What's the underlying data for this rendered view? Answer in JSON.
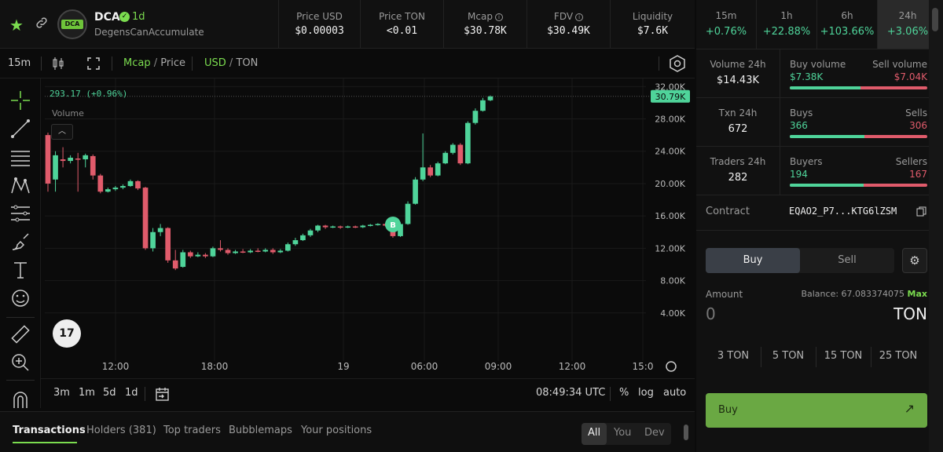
{
  "header": {
    "token_symbol": "DCA",
    "verified_icon": "check-badge-icon",
    "age": "1d",
    "token_name": "DegensCanAccumulate",
    "stats": [
      {
        "label": "Price USD",
        "value": "$0.00003"
      },
      {
        "label": "Price TON",
        "value": "<0.01"
      },
      {
        "label": "Mcap",
        "value": "$30.78K"
      },
      {
        "label": "FDV",
        "value": "$30.49K"
      },
      {
        "label": "Liquidity",
        "value": "$7.6K"
      }
    ],
    "timeframes": [
      {
        "label": "15m",
        "value": "+0.76%"
      },
      {
        "label": "1h",
        "value": "+22.88%"
      },
      {
        "label": "6h",
        "value": "+103.66%"
      },
      {
        "label": "24h",
        "value": "+3.06%"
      }
    ]
  },
  "toolbar": {
    "interval": "15m",
    "mcap_label": "Mcap",
    "price_label": "Price",
    "slash": "/",
    "usd_label": "USD",
    "ton_label": "TON"
  },
  "chart": {
    "ohlc_text": "293.17 (+0.96%)",
    "volume_label": "Volume",
    "current_label": "30.79K",
    "trade_marker": "B",
    "tv_logo": "17",
    "collapse_icon": "chevron-up-icon"
  },
  "chart_data": {
    "type": "candlestick",
    "ylim": [
      0,
      33000
    ],
    "y_ticks": [
      "4.00K",
      "8.00K",
      "12.00K",
      "16.00K",
      "20.00K",
      "24.00K",
      "28.00K",
      "32.00K"
    ],
    "x_ticks": [
      "12:00",
      "18:00",
      "19",
      "06:00",
      "09:00",
      "12:00",
      "15:0"
    ],
    "last_value": 30790,
    "candles": [
      {
        "o": 26000,
        "c": 20000,
        "h": 26300,
        "l": 19000
      },
      {
        "o": 20500,
        "c": 23500,
        "h": 24000,
        "l": 19000
      },
      {
        "o": 23000,
        "c": 22800,
        "h": 24500,
        "l": 22000
      },
      {
        "o": 22800,
        "c": 23200,
        "h": 23500,
        "l": 22500
      },
      {
        "o": 23100,
        "c": 23000,
        "h": 23800,
        "l": 19000
      },
      {
        "o": 23000,
        "c": 23500,
        "h": 23700,
        "l": 22000
      },
      {
        "o": 23400,
        "c": 21000,
        "h": 23600,
        "l": 20500
      },
      {
        "o": 21000,
        "c": 19000,
        "h": 21200,
        "l": 18800
      },
      {
        "o": 19000,
        "c": 19300,
        "h": 19500,
        "l": 18900
      },
      {
        "o": 19300,
        "c": 19500,
        "h": 19700,
        "l": 19100
      },
      {
        "o": 19500,
        "c": 19700,
        "h": 19900,
        "l": 19300
      },
      {
        "o": 19700,
        "c": 20300,
        "h": 20500,
        "l": 19600
      },
      {
        "o": 20300,
        "c": 19400,
        "h": 20400,
        "l": 19200
      },
      {
        "o": 19500,
        "c": 12000,
        "h": 19600,
        "l": 11800
      },
      {
        "o": 12000,
        "c": 14000,
        "h": 14500,
        "l": 11600
      },
      {
        "o": 14000,
        "c": 14500,
        "h": 15000,
        "l": 13500
      },
      {
        "o": 14500,
        "c": 10500,
        "h": 14600,
        "l": 10200
      },
      {
        "o": 10500,
        "c": 9500,
        "h": 11800,
        "l": 9300
      },
      {
        "o": 9700,
        "c": 11500,
        "h": 11800,
        "l": 9600
      },
      {
        "o": 11500,
        "c": 11000,
        "h": 11700,
        "l": 10800
      },
      {
        "o": 11000,
        "c": 11200,
        "h": 11500,
        "l": 10900
      },
      {
        "o": 11200,
        "c": 11000,
        "h": 11400,
        "l": 10800
      },
      {
        "o": 11000,
        "c": 12000,
        "h": 12200,
        "l": 10900
      },
      {
        "o": 12000,
        "c": 11800,
        "h": 13000,
        "l": 11600
      },
      {
        "o": 11800,
        "c": 11400,
        "h": 12000,
        "l": 11200
      },
      {
        "o": 11400,
        "c": 11600,
        "h": 11800,
        "l": 11300
      },
      {
        "o": 11600,
        "c": 11500,
        "h": 11900,
        "l": 11400
      },
      {
        "o": 11500,
        "c": 11700,
        "h": 11900,
        "l": 11400
      },
      {
        "o": 11700,
        "c": 11600,
        "h": 12000,
        "l": 11500
      },
      {
        "o": 11600,
        "c": 11800,
        "h": 12000,
        "l": 11500
      },
      {
        "o": 11800,
        "c": 11500,
        "h": 12000,
        "l": 11300
      },
      {
        "o": 11500,
        "c": 11700,
        "h": 11900,
        "l": 11400
      },
      {
        "o": 11700,
        "c": 12500,
        "h": 12700,
        "l": 11600
      },
      {
        "o": 12500,
        "c": 13000,
        "h": 13300,
        "l": 12300
      },
      {
        "o": 13000,
        "c": 13600,
        "h": 13800,
        "l": 12900
      },
      {
        "o": 13600,
        "c": 14200,
        "h": 14400,
        "l": 13400
      },
      {
        "o": 14200,
        "c": 14800,
        "h": 14900,
        "l": 14000
      },
      {
        "o": 14800,
        "c": 14600,
        "h": 14900,
        "l": 14400
      },
      {
        "o": 14600,
        "c": 14700,
        "h": 14800,
        "l": 14500
      },
      {
        "o": 14700,
        "c": 14600,
        "h": 14800,
        "l": 14400
      },
      {
        "o": 14600,
        "c": 14700,
        "h": 14800,
        "l": 14500
      },
      {
        "o": 14700,
        "c": 14600,
        "h": 14800,
        "l": 14500
      },
      {
        "o": 14600,
        "c": 14800,
        "h": 14900,
        "l": 14500
      },
      {
        "o": 14800,
        "c": 14900,
        "h": 15000,
        "l": 14700
      },
      {
        "o": 14900,
        "c": 15000,
        "h": 15100,
        "l": 14800
      },
      {
        "o": 15000,
        "c": 14800,
        "h": 15100,
        "l": 14700
      },
      {
        "o": 14800,
        "c": 13500,
        "h": 14900,
        "l": 13300
      },
      {
        "o": 13500,
        "c": 15000,
        "h": 15200,
        "l": 13400
      },
      {
        "o": 15000,
        "c": 17500,
        "h": 17800,
        "l": 14900
      },
      {
        "o": 17500,
        "c": 20500,
        "h": 20800,
        "l": 17400
      },
      {
        "o": 20500,
        "c": 22000,
        "h": 26200,
        "l": 20300
      },
      {
        "o": 22000,
        "c": 21000,
        "h": 22300,
        "l": 20800
      },
      {
        "o": 21000,
        "c": 22500,
        "h": 22700,
        "l": 20900
      },
      {
        "o": 22500,
        "c": 23800,
        "h": 24000,
        "l": 22400
      },
      {
        "o": 23800,
        "c": 24800,
        "h": 25000,
        "l": 23600
      },
      {
        "o": 24800,
        "c": 22500,
        "h": 25000,
        "l": 22300
      },
      {
        "o": 22500,
        "c": 27500,
        "h": 27700,
        "l": 22400
      },
      {
        "o": 27500,
        "c": 29000,
        "h": 29300,
        "l": 27300
      },
      {
        "o": 29000,
        "c": 30300,
        "h": 30600,
        "l": 28900
      },
      {
        "o": 30300,
        "c": 30790,
        "h": 30900,
        "l": 30200
      }
    ]
  },
  "chart_bottom": {
    "ranges": [
      "3m",
      "1m",
      "5d",
      "1d"
    ],
    "time": "08:49:34 UTC",
    "percent": "%",
    "log": "log",
    "auto": "auto"
  },
  "tabs": {
    "items": [
      "Transactions",
      "Holders (381)",
      "Top traders",
      "Bubblemaps",
      "Your positions"
    ],
    "filter": [
      "All",
      "You",
      "Dev"
    ]
  },
  "right": {
    "volume": {
      "label": "Volume 24h",
      "value": "$14.43K",
      "buy_label": "Buy volume",
      "buy_value": "$7.38K",
      "sell_label": "Sell volume",
      "sell_value": "$7.04K",
      "buy_ratio": 0.512
    },
    "txn": {
      "label": "Txn 24h",
      "value": "672",
      "buy_label": "Buys",
      "buy_value": "366",
      "sell_label": "Sells",
      "sell_value": "306",
      "buy_ratio": 0.545
    },
    "traders": {
      "label": "Traders 24h",
      "value": "282",
      "buy_label": "Buyers",
      "buy_value": "194",
      "sell_label": "Sellers",
      "sell_value": "167",
      "buy_ratio": 0.537
    },
    "contract": {
      "label": "Contract",
      "value": "EQAO2_P7...KTG6lZSM"
    },
    "trade": {
      "buy_tab": "Buy",
      "sell_tab": "Sell",
      "amount_label": "Amount",
      "balance_prefix": "Balance: 67.083374075",
      "max_label": "Max",
      "amount_placeholder": "0",
      "unit": "TON",
      "quick": [
        "3 TON",
        "5 TON",
        "15 TON",
        "25 TON"
      ],
      "submit": "Buy"
    }
  },
  "colors": {
    "accent": "#7bdc4f",
    "up": "#4fd49a",
    "down": "#e05b6b"
  }
}
